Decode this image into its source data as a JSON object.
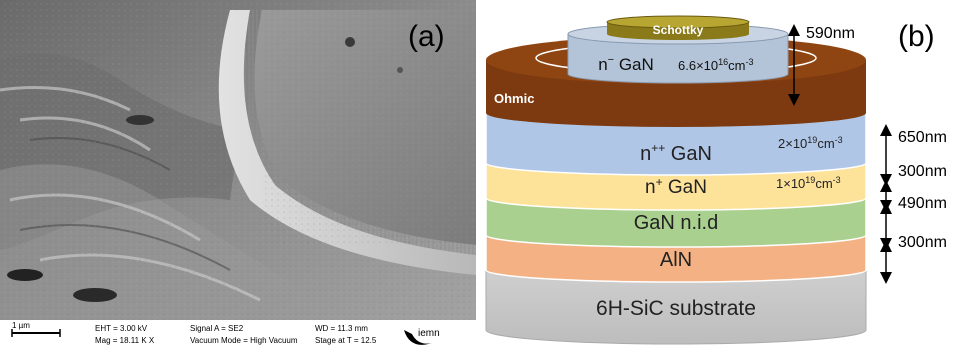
{
  "panel_a": {
    "label": "(a)",
    "scale_bar": "1 µm",
    "eht": "EHT = 3.00 kV",
    "mag": "Mag = 18.11 K X",
    "signal": "Signal A = SE2",
    "vacuum": "Vacuum Mode = High Vacuum",
    "wd": "WD = 11.3 mm",
    "stage": "Stage at T = 12.5",
    "logo_text": "iemn"
  },
  "panel_b": {
    "label": "(b)",
    "layers": {
      "schottky": "Schottky",
      "n_minus": "n",
      "n_minus_sup": "−",
      "n_minus_rest": " GaN",
      "n_minus_doping": "6.6×10",
      "n_minus_doping_exp": "16",
      "n_minus_doping_unit": "cm",
      "n_minus_doping_unit_exp": "-3",
      "ohmic": "Ohmic",
      "npp": "n",
      "npp_sup": "++",
      "npp_rest": " GaN",
      "npp_doping": "2×10",
      "npp_doping_exp": "19",
      "npp_doping_unit": "cm",
      "npp_doping_unit_exp": "-3",
      "np": "n",
      "np_sup": "+",
      "np_rest": " GaN",
      "np_doping": "1×10",
      "np_doping_exp": "19",
      "np_doping_unit": "cm",
      "np_doping_unit_exp": "-3",
      "nid": "GaN n.i.d",
      "aln": "AlN",
      "substrate": "6H-SiC substrate"
    },
    "thickness": {
      "t590": "590nm",
      "t650": "650nm",
      "t300a": "300nm",
      "t490": "490nm",
      "t300b": "300nm"
    },
    "colors": {
      "schottky": "#8a7a1a",
      "n_minus": "#b4c4d8",
      "ohmic": "#7d3a10",
      "npp": "#b0c6e6",
      "np": "#fde29a",
      "nid": "#a9d08e",
      "aln": "#f4b183",
      "substrate": "#c8c8c8"
    }
  }
}
